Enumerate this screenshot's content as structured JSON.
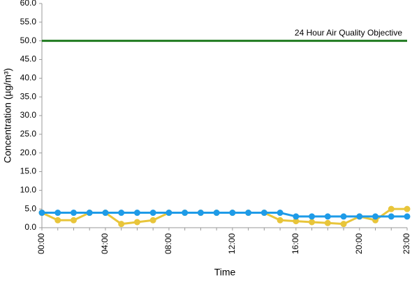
{
  "chart_data": {
    "type": "line",
    "x_label": "Time",
    "y_label": "Concentration (µg/m³)",
    "categories": [
      "00:00",
      null,
      null,
      null,
      "04:00",
      null,
      null,
      null,
      "08:00",
      null,
      null,
      null,
      "12:00",
      null,
      null,
      null,
      "16:00",
      null,
      null,
      null,
      "20:00",
      null,
      null,
      "23:00"
    ],
    "series": [
      {
        "color": "#e8c53a",
        "values": [
          4,
          2,
          2,
          4,
          4,
          1,
          1.5,
          2,
          4,
          4,
          4,
          4,
          4,
          4,
          4,
          2,
          1.75,
          1.5,
          1.25,
          1,
          3,
          2,
          5,
          5
        ]
      },
      {
        "color": "#1e9be8",
        "values": [
          4,
          4,
          4,
          4,
          4,
          4,
          4,
          4,
          4,
          4,
          4,
          4,
          4,
          4,
          4,
          4,
          3,
          3,
          3,
          3,
          3,
          3,
          3,
          3
        ]
      }
    ],
    "reference_line": {
      "label": "24 Hour Air Quality Objective",
      "value": 50,
      "color": "#1f7a1f"
    },
    "ylim": [
      0,
      60
    ],
    "yticks": [
      {
        "value": 0,
        "label": "0.0"
      },
      {
        "value": 5,
        "label": "5.0"
      },
      {
        "value": 10,
        "label": "10.0"
      },
      {
        "value": 15,
        "label": "15.0"
      },
      {
        "value": 20,
        "label": "20.0"
      },
      {
        "value": 25,
        "label": "25.0"
      },
      {
        "value": 30,
        "label": "30.0"
      },
      {
        "value": 35,
        "label": "35.0"
      },
      {
        "value": 40,
        "label": "40.0"
      },
      {
        "value": 45,
        "label": "45.0"
      },
      {
        "value": 50,
        "label": "50.0"
      },
      {
        "value": 55,
        "label": "55.0"
      },
      {
        "value": 60,
        "label": "60.0"
      }
    ]
  }
}
